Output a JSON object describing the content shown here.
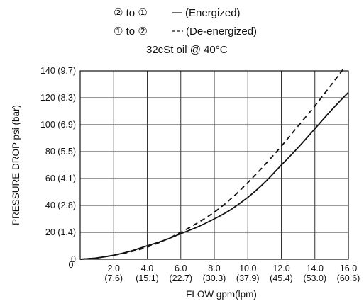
{
  "legend": {
    "energized": {
      "from": "②",
      "to": "①",
      "label": "(Energized)"
    },
    "deenergized": {
      "from": "①",
      "to": "②",
      "label": "(De-energized)"
    },
    "joiner": "to",
    "condition": "32cSt oil @ 40°C"
  },
  "chart_data": {
    "type": "line",
    "title": "",
    "xlabel": "FLOW gpm(lpm)",
    "ylabel": "PRESSURE DROP psi (bar)",
    "xlim": [
      0,
      16
    ],
    "ylim": [
      0,
      140
    ],
    "grid": true,
    "x_ticks": [
      {
        "value": 0,
        "label": "0",
        "sub": ""
      },
      {
        "value": 2,
        "label": "2.0",
        "sub": "(7.6)"
      },
      {
        "value": 4,
        "label": "4.0",
        "sub": "(15.1)"
      },
      {
        "value": 6,
        "label": "6.0",
        "sub": "(22.7)"
      },
      {
        "value": 8,
        "label": "8.0",
        "sub": "(30.3)"
      },
      {
        "value": 10,
        "label": "10.0",
        "sub": "(37.9)"
      },
      {
        "value": 12,
        "label": "12.0",
        "sub": "(45.4)"
      },
      {
        "value": 14,
        "label": "14.0",
        "sub": "(53.0)"
      },
      {
        "value": 16,
        "label": "16.0",
        "sub": "(60.6)"
      }
    ],
    "y_ticks": [
      {
        "value": 0,
        "label": "0"
      },
      {
        "value": 20,
        "label": "20 (1.4)"
      },
      {
        "value": 40,
        "label": "40 (2.8)"
      },
      {
        "value": 60,
        "label": "60 (4.1)"
      },
      {
        "value": 80,
        "label": "80 (5.5)"
      },
      {
        "value": 100,
        "label": "100 (6.9)"
      },
      {
        "value": 120,
        "label": "120 (8.3)"
      },
      {
        "value": 140,
        "label": "140 (9.7)"
      }
    ],
    "series": [
      {
        "name": "② to ① (Energized)",
        "style": "solid",
        "x": [
          0,
          1,
          2,
          3,
          4,
          5,
          6,
          7,
          8,
          9,
          10,
          11,
          12,
          13,
          14,
          15,
          16
        ],
        "y": [
          0,
          1,
          3,
          6,
          10,
          14,
          19,
          24,
          30,
          37,
          46,
          57,
          70,
          83,
          97,
          111,
          124
        ]
      },
      {
        "name": "① to ② (De-energized)",
        "style": "dashed",
        "x": [
          0,
          1,
          2,
          3,
          4,
          5,
          6,
          7,
          8,
          9,
          10,
          11,
          12,
          13,
          14,
          15,
          15.8
        ],
        "y": [
          0,
          1,
          3,
          5.5,
          9,
          14,
          20,
          27,
          35,
          45,
          57,
          70,
          84,
          99,
          114,
          130,
          143
        ]
      }
    ]
  }
}
